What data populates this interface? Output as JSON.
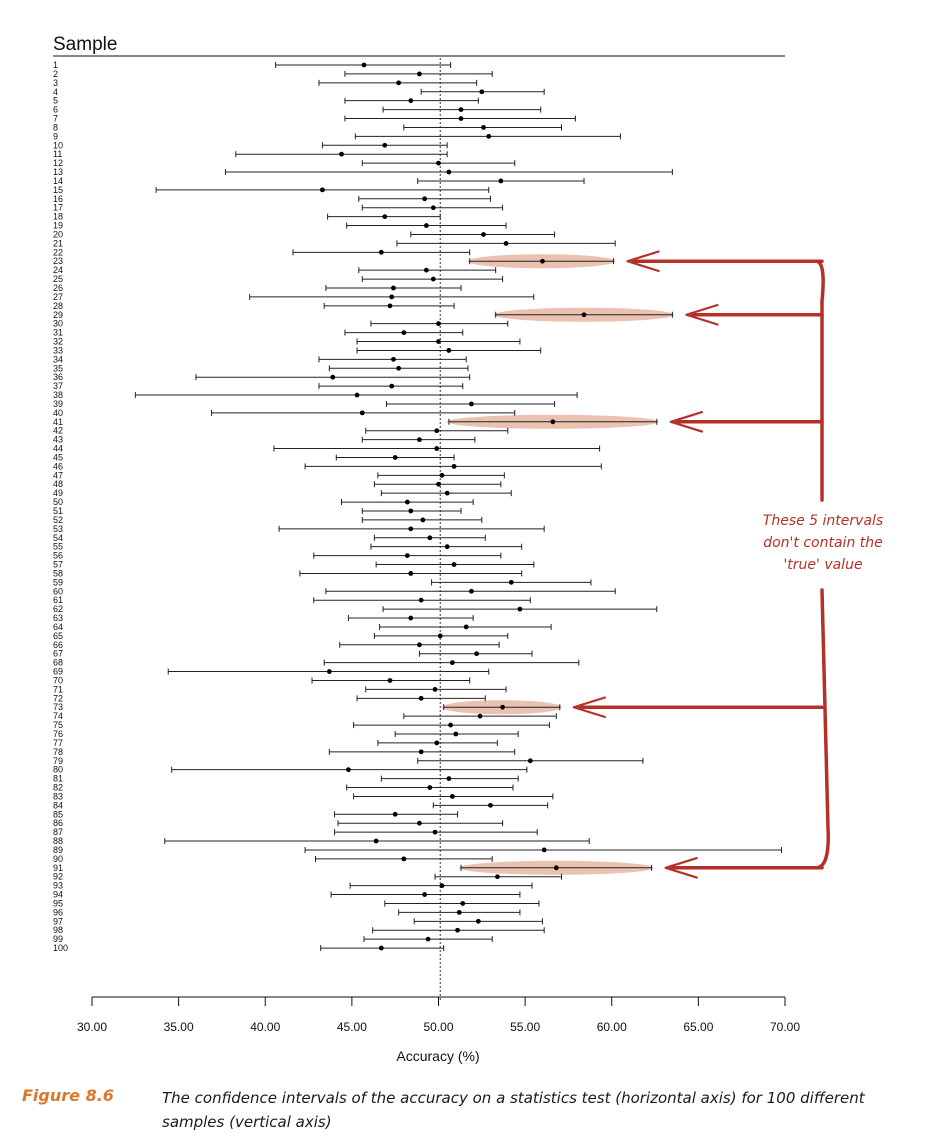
{
  "chart_data": {
    "type": "interval",
    "ylabel": "Sample",
    "xlabel": "Accuracy (%)",
    "xlim": [
      30,
      70
    ],
    "xticks": [
      "30.00",
      "35.00",
      "40.00",
      "45.00",
      "50.00",
      "55.00",
      "60.00",
      "65.00",
      "70.00"
    ],
    "reference_line": 50.1,
    "samples": [
      {
        "n": "1",
        "lo": 40.6,
        "mean": 45.7,
        "hi": 50.7
      },
      {
        "n": "2",
        "lo": 44.6,
        "mean": 48.9,
        "hi": 53.1
      },
      {
        "n": "3",
        "lo": 43.1,
        "mean": 47.7,
        "hi": 52.2
      },
      {
        "n": "4",
        "lo": 49.0,
        "mean": 52.5,
        "hi": 56.1
      },
      {
        "n": "5",
        "lo": 44.6,
        "mean": 48.4,
        "hi": 52.3
      },
      {
        "n": "6",
        "lo": 46.8,
        "mean": 51.3,
        "hi": 55.9
      },
      {
        "n": "7",
        "lo": 44.6,
        "mean": 51.3,
        "hi": 57.9
      },
      {
        "n": "8",
        "lo": 48.0,
        "mean": 52.6,
        "hi": 57.1
      },
      {
        "n": "9",
        "lo": 45.2,
        "mean": 52.9,
        "hi": 60.5
      },
      {
        "n": "10",
        "lo": 43.3,
        "mean": 46.9,
        "hi": 50.5
      },
      {
        "n": "11",
        "lo": 38.3,
        "mean": 44.4,
        "hi": 50.5
      },
      {
        "n": "12",
        "lo": 45.6,
        "mean": 50.0,
        "hi": 54.4
      },
      {
        "n": "13",
        "lo": 37.7,
        "mean": 50.6,
        "hi": 63.5
      },
      {
        "n": "14",
        "lo": 48.8,
        "mean": 53.6,
        "hi": 58.4
      },
      {
        "n": "15",
        "lo": 33.7,
        "mean": 43.3,
        "hi": 52.9
      },
      {
        "n": "16",
        "lo": 45.4,
        "mean": 49.2,
        "hi": 53.0
      },
      {
        "n": "17",
        "lo": 45.6,
        "mean": 49.7,
        "hi": 53.7
      },
      {
        "n": "18",
        "lo": 43.6,
        "mean": 46.9,
        "hi": 50.1
      },
      {
        "n": "19",
        "lo": 44.7,
        "mean": 49.3,
        "hi": 53.9
      },
      {
        "n": "20",
        "lo": 48.4,
        "mean": 52.6,
        "hi": 56.7
      },
      {
        "n": "21",
        "lo": 47.6,
        "mean": 53.9,
        "hi": 60.2
      },
      {
        "n": "22",
        "lo": 41.6,
        "mean": 46.7,
        "hi": 51.8
      },
      {
        "n": "23",
        "lo": 51.8,
        "mean": 56.0,
        "hi": 60.1
      },
      {
        "n": "24",
        "lo": 45.4,
        "mean": 49.3,
        "hi": 53.3
      },
      {
        "n": "25",
        "lo": 45.6,
        "mean": 49.7,
        "hi": 53.7
      },
      {
        "n": "26",
        "lo": 43.5,
        "mean": 47.4,
        "hi": 51.3
      },
      {
        "n": "27",
        "lo": 39.1,
        "mean": 47.3,
        "hi": 55.5
      },
      {
        "n": "28",
        "lo": 43.4,
        "mean": 47.2,
        "hi": 50.9
      },
      {
        "n": "29",
        "lo": 53.3,
        "mean": 58.4,
        "hi": 63.5
      },
      {
        "n": "30",
        "lo": 46.1,
        "mean": 50.0,
        "hi": 54.0
      },
      {
        "n": "31",
        "lo": 44.6,
        "mean": 48.0,
        "hi": 51.4
      },
      {
        "n": "32",
        "lo": 45.3,
        "mean": 50.0,
        "hi": 54.7
      },
      {
        "n": "33",
        "lo": 45.3,
        "mean": 50.6,
        "hi": 55.9
      },
      {
        "n": "34",
        "lo": 43.1,
        "mean": 47.4,
        "hi": 51.6
      },
      {
        "n": "35",
        "lo": 43.7,
        "mean": 47.7,
        "hi": 51.7
      },
      {
        "n": "36",
        "lo": 36.0,
        "mean": 43.9,
        "hi": 51.8
      },
      {
        "n": "37",
        "lo": 43.1,
        "mean": 47.3,
        "hi": 51.4
      },
      {
        "n": "38",
        "lo": 32.5,
        "mean": 45.3,
        "hi": 58.0
      },
      {
        "n": "39",
        "lo": 47.0,
        "mean": 51.9,
        "hi": 56.7
      },
      {
        "n": "40",
        "lo": 36.9,
        "mean": 45.6,
        "hi": 54.4
      },
      {
        "n": "41",
        "lo": 50.6,
        "mean": 56.6,
        "hi": 62.6
      },
      {
        "n": "42",
        "lo": 45.8,
        "mean": 49.9,
        "hi": 54.0
      },
      {
        "n": "43",
        "lo": 45.6,
        "mean": 48.9,
        "hi": 52.1
      },
      {
        "n": "44",
        "lo": 40.5,
        "mean": 49.9,
        "hi": 59.3
      },
      {
        "n": "45",
        "lo": 44.1,
        "mean": 47.5,
        "hi": 50.9
      },
      {
        "n": "46",
        "lo": 42.3,
        "mean": 50.9,
        "hi": 59.4
      },
      {
        "n": "47",
        "lo": 46.5,
        "mean": 50.2,
        "hi": 53.8
      },
      {
        "n": "48",
        "lo": 46.3,
        "mean": 50.0,
        "hi": 53.6
      },
      {
        "n": "49",
        "lo": 46.7,
        "mean": 50.5,
        "hi": 54.2
      },
      {
        "n": "50",
        "lo": 44.4,
        "mean": 48.2,
        "hi": 52.0
      },
      {
        "n": "51",
        "lo": 45.6,
        "mean": 48.4,
        "hi": 51.3
      },
      {
        "n": "52",
        "lo": 45.6,
        "mean": 49.1,
        "hi": 52.5
      },
      {
        "n": "53",
        "lo": 40.8,
        "mean": 48.4,
        "hi": 56.1
      },
      {
        "n": "54",
        "lo": 46.3,
        "mean": 49.5,
        "hi": 52.7
      },
      {
        "n": "55",
        "lo": 46.1,
        "mean": 50.5,
        "hi": 54.8
      },
      {
        "n": "56",
        "lo": 42.8,
        "mean": 48.2,
        "hi": 53.6
      },
      {
        "n": "57",
        "lo": 46.4,
        "mean": 50.9,
        "hi": 55.5
      },
      {
        "n": "58",
        "lo": 42.0,
        "mean": 48.4,
        "hi": 54.8
      },
      {
        "n": "59",
        "lo": 49.6,
        "mean": 54.2,
        "hi": 58.8
      },
      {
        "n": "60",
        "lo": 43.5,
        "mean": 51.9,
        "hi": 60.2
      },
      {
        "n": "61",
        "lo": 42.8,
        "mean": 49.0,
        "hi": 55.3
      },
      {
        "n": "62",
        "lo": 46.8,
        "mean": 54.7,
        "hi": 62.6
      },
      {
        "n": "63",
        "lo": 44.8,
        "mean": 48.4,
        "hi": 52.0
      },
      {
        "n": "64",
        "lo": 46.6,
        "mean": 51.6,
        "hi": 56.5
      },
      {
        "n": "65",
        "lo": 46.3,
        "mean": 50.1,
        "hi": 54.0
      },
      {
        "n": "66",
        "lo": 44.3,
        "mean": 48.9,
        "hi": 53.5
      },
      {
        "n": "67",
        "lo": 48.9,
        "mean": 52.2,
        "hi": 55.4
      },
      {
        "n": "68",
        "lo": 43.4,
        "mean": 50.8,
        "hi": 58.1
      },
      {
        "n": "69",
        "lo": 34.4,
        "mean": 43.7,
        "hi": 52.9
      },
      {
        "n": "70",
        "lo": 42.7,
        "mean": 47.2,
        "hi": 51.8
      },
      {
        "n": "71",
        "lo": 45.8,
        "mean": 49.8,
        "hi": 53.9
      },
      {
        "n": "72",
        "lo": 45.3,
        "mean": 49.0,
        "hi": 52.7
      },
      {
        "n": "73",
        "lo": 50.3,
        "mean": 53.7,
        "hi": 57.0
      },
      {
        "n": "74",
        "lo": 48.0,
        "mean": 52.4,
        "hi": 56.8
      },
      {
        "n": "75",
        "lo": 45.1,
        "mean": 50.7,
        "hi": 56.4
      },
      {
        "n": "76",
        "lo": 47.5,
        "mean": 51.0,
        "hi": 54.6
      },
      {
        "n": "77",
        "lo": 46.5,
        "mean": 49.9,
        "hi": 53.4
      },
      {
        "n": "78",
        "lo": 43.7,
        "mean": 49.0,
        "hi": 54.4
      },
      {
        "n": "79",
        "lo": 48.8,
        "mean": 55.3,
        "hi": 61.8
      },
      {
        "n": "80",
        "lo": 34.6,
        "mean": 44.8,
        "hi": 55.1
      },
      {
        "n": "81",
        "lo": 46.7,
        "mean": 50.6,
        "hi": 54.6
      },
      {
        "n": "82",
        "lo": 44.7,
        "mean": 49.5,
        "hi": 54.3
      },
      {
        "n": "83",
        "lo": 45.1,
        "mean": 50.8,
        "hi": 56.6
      },
      {
        "n": "84",
        "lo": 49.7,
        "mean": 53.0,
        "hi": 56.3
      },
      {
        "n": "85",
        "lo": 44.0,
        "mean": 47.5,
        "hi": 51.1
      },
      {
        "n": "86",
        "lo": 44.2,
        "mean": 48.9,
        "hi": 53.7
      },
      {
        "n": "87",
        "lo": 44.0,
        "mean": 49.8,
        "hi": 55.7
      },
      {
        "n": "88",
        "lo": 34.2,
        "mean": 46.4,
        "hi": 58.7
      },
      {
        "n": "89",
        "lo": 42.3,
        "mean": 56.1,
        "hi": 69.8
      },
      {
        "n": "90",
        "lo": 42.9,
        "mean": 48.0,
        "hi": 53.1
      },
      {
        "n": "91",
        "lo": 51.3,
        "mean": 56.8,
        "hi": 62.3
      },
      {
        "n": "92",
        "lo": 49.8,
        "mean": 53.4,
        "hi": 57.1
      },
      {
        "n": "93",
        "lo": 44.9,
        "mean": 50.2,
        "hi": 55.4
      },
      {
        "n": "94",
        "lo": 43.8,
        "mean": 49.2,
        "hi": 54.7
      },
      {
        "n": "95",
        "lo": 46.9,
        "mean": 51.4,
        "hi": 55.8
      },
      {
        "n": "96",
        "lo": 47.7,
        "mean": 51.2,
        "hi": 54.7
      },
      {
        "n": "97",
        "lo": 48.6,
        "mean": 52.3,
        "hi": 56.0
      },
      {
        "n": "98",
        "lo": 46.2,
        "mean": 51.1,
        "hi": 56.1
      },
      {
        "n": "99",
        "lo": 45.7,
        "mean": 49.4,
        "hi": 53.1
      },
      {
        "n": "100",
        "lo": 43.2,
        "mean": 46.7,
        "hi": 50.3
      }
    ],
    "highlighted": [
      "23",
      "29",
      "41",
      "73",
      "91"
    ]
  },
  "annotation": {
    "lines": [
      "These 5 intervals",
      "don't contain the",
      "'true' value"
    ],
    "color": "#b43128",
    "highlight_color": "#e8b6a2"
  },
  "caption": {
    "label": "Figure 8.6",
    "text": "The confidence intervals of the accuracy on a statistics test (horizontal axis) for 100 different samples (vertical axis)",
    "label_color": "#d9782d"
  }
}
